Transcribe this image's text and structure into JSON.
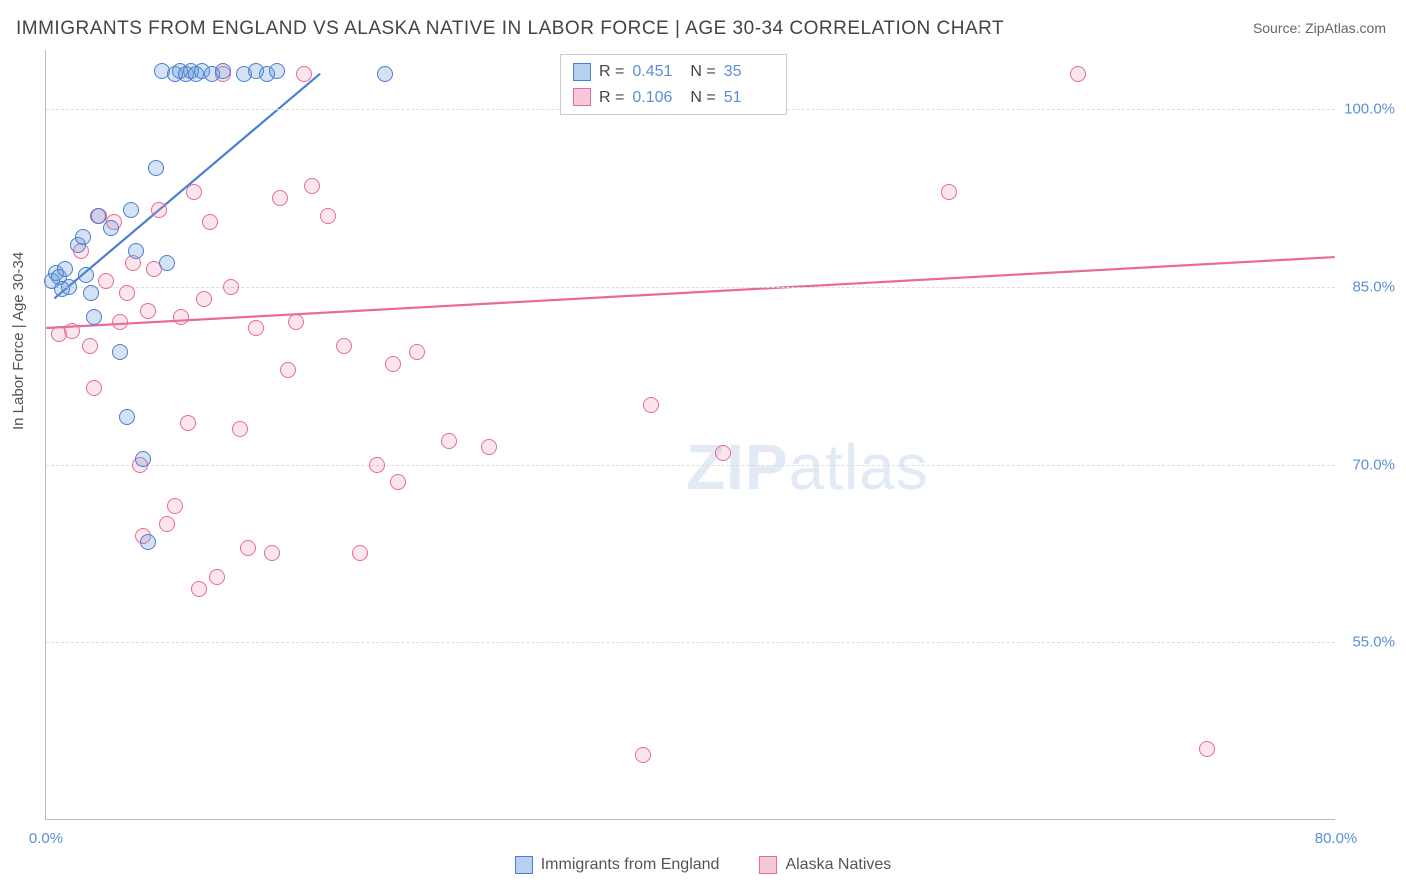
{
  "title": "IMMIGRANTS FROM ENGLAND VS ALASKA NATIVE IN LABOR FORCE | AGE 30-34 CORRELATION CHART",
  "source_prefix": "Source: ",
  "source_name": "ZipAtlas.com",
  "y_axis_title": "In Labor Force | Age 30-34",
  "watermark_a": "ZIP",
  "watermark_b": "atlas",
  "chart": {
    "type": "scatter",
    "xlim": [
      0,
      80
    ],
    "ylim": [
      40,
      105
    ],
    "x_ticks": [
      {
        "v": 0,
        "label": "0.0%"
      },
      {
        "v": 80,
        "label": "80.0%"
      }
    ],
    "y_gridlines": [
      55,
      70,
      85,
      100
    ],
    "y_tick_labels": [
      "55.0%",
      "70.0%",
      "85.0%",
      "100.0%"
    ],
    "background_color": "#ffffff",
    "grid_color": "#dddddd",
    "axis_color": "#bbbbbb",
    "tick_label_color": "#5b8fd6",
    "marker_radius": 8,
    "marker_border_width": 1.2,
    "marker_fill_opacity": 0.25,
    "series": [
      {
        "key": "england",
        "label": "Immigrants from England",
        "color_border": "#4a7fd0",
        "color_fill": "rgba(100,150,215,0.28)",
        "legend_swatch_fill": "#b8d0ef",
        "legend_swatch_border": "#4a7fd0",
        "R": "0.451",
        "N": "35",
        "trend": {
          "x1": 0.5,
          "y1": 84,
          "x2": 17,
          "y2": 103,
          "width": 2.2
        },
        "points": [
          [
            0.4,
            85.5
          ],
          [
            0.6,
            86.2
          ],
          [
            0.8,
            85.8
          ],
          [
            1.0,
            84.8
          ],
          [
            1.2,
            86.5
          ],
          [
            1.4,
            85.0
          ],
          [
            2.0,
            88.5
          ],
          [
            2.3,
            89.2
          ],
          [
            2.5,
            86.0
          ],
          [
            2.8,
            84.5
          ],
          [
            3.0,
            82.5
          ],
          [
            3.2,
            91.0
          ],
          [
            4.0,
            90.0
          ],
          [
            4.6,
            79.5
          ],
          [
            5.0,
            74.0
          ],
          [
            5.3,
            91.5
          ],
          [
            5.6,
            88.0
          ],
          [
            6.0,
            70.5
          ],
          [
            6.3,
            63.5
          ],
          [
            6.8,
            95.0
          ],
          [
            7.2,
            103.2
          ],
          [
            7.5,
            87.0
          ],
          [
            8.0,
            103.0
          ],
          [
            8.3,
            103.2
          ],
          [
            8.7,
            103.0
          ],
          [
            9.0,
            103.2
          ],
          [
            9.3,
            103.0
          ],
          [
            9.7,
            103.2
          ],
          [
            10.3,
            103.0
          ],
          [
            11.0,
            103.2
          ],
          [
            12.3,
            103.0
          ],
          [
            13.0,
            103.2
          ],
          [
            13.7,
            103.0
          ],
          [
            14.3,
            103.2
          ],
          [
            21.0,
            103.0
          ]
        ]
      },
      {
        "key": "alaska",
        "label": "Alaska Natives",
        "color_border": "#e86a99",
        "color_fill": "rgba(240,140,175,0.22)",
        "legend_swatch_fill": "#f5c9d9",
        "legend_swatch_border": "#e86a99",
        "R": "0.106",
        "N": "51",
        "trend": {
          "x1": 0,
          "y1": 81.5,
          "x2": 80,
          "y2": 87.5,
          "width": 2.2
        },
        "points": [
          [
            0.8,
            81.0
          ],
          [
            1.6,
            81.3
          ],
          [
            2.2,
            88.0
          ],
          [
            2.7,
            80.0
          ],
          [
            3.0,
            76.5
          ],
          [
            3.3,
            91.0
          ],
          [
            3.7,
            85.5
          ],
          [
            4.2,
            90.5
          ],
          [
            4.6,
            82.0
          ],
          [
            5.0,
            84.5
          ],
          [
            5.4,
            87.0
          ],
          [
            5.8,
            70.0
          ],
          [
            6.0,
            64.0
          ],
          [
            6.3,
            83.0
          ],
          [
            6.7,
            86.5
          ],
          [
            7.0,
            91.5
          ],
          [
            7.5,
            65.0
          ],
          [
            8.0,
            66.5
          ],
          [
            8.4,
            82.5
          ],
          [
            8.8,
            73.5
          ],
          [
            9.2,
            93.0
          ],
          [
            9.5,
            59.5
          ],
          [
            9.8,
            84.0
          ],
          [
            10.2,
            90.5
          ],
          [
            10.6,
            60.5
          ],
          [
            11.0,
            103.0
          ],
          [
            11.5,
            85.0
          ],
          [
            12.0,
            73.0
          ],
          [
            12.5,
            63.0
          ],
          [
            13.0,
            81.5
          ],
          [
            14.0,
            62.5
          ],
          [
            14.5,
            92.5
          ],
          [
            15.0,
            78.0
          ],
          [
            15.5,
            82.0
          ],
          [
            16.0,
            103.0
          ],
          [
            16.5,
            93.5
          ],
          [
            17.5,
            91.0
          ],
          [
            18.5,
            80.0
          ],
          [
            19.5,
            62.5
          ],
          [
            20.5,
            70.0
          ],
          [
            21.5,
            78.5
          ],
          [
            21.8,
            68.5
          ],
          [
            23.0,
            79.5
          ],
          [
            25.0,
            72.0
          ],
          [
            27.5,
            71.5
          ],
          [
            37.0,
            45.5
          ],
          [
            37.5,
            75.0
          ],
          [
            42.0,
            71.0
          ],
          [
            56.0,
            93.0
          ],
          [
            64.0,
            103.0
          ],
          [
            72.0,
            46.0
          ]
        ]
      }
    ]
  },
  "legend_top": {
    "R_label": "R =",
    "N_label": "N ="
  }
}
